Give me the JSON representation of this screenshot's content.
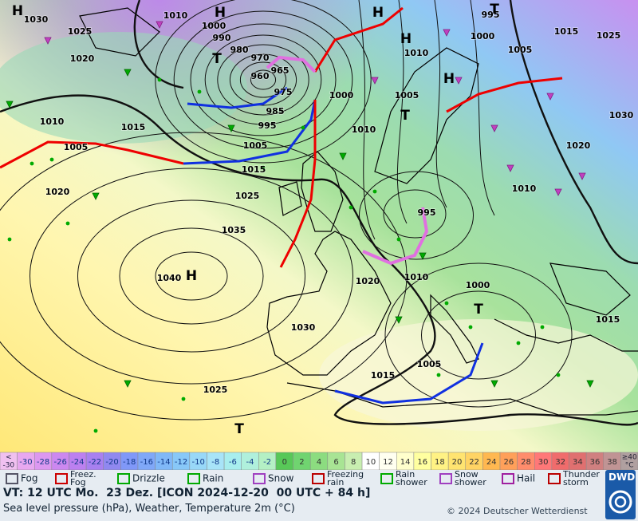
{
  "map": {
    "pressure_labels": [
      1030,
      1025,
      1020,
      1010,
      1000,
      990,
      980,
      970,
      960,
      965,
      975,
      985,
      995,
      1005,
      1015,
      1025,
      1035,
      1040,
      1015,
      1010,
      1005,
      1020,
      1000,
      1010,
      1005,
      1010,
      1000,
      995,
      1005,
      1015,
      1025,
      1030,
      1020,
      1010,
      995,
      1020,
      1010,
      1000,
      1030,
      1015,
      1005,
      1015,
      1025
    ],
    "centers": [
      "H",
      "H",
      "H",
      "H",
      "H",
      "T",
      "T",
      "H",
      "T",
      "T",
      "T"
    ],
    "temperature_scale": {
      "first_cell": [
        "<",
        "-30"
      ],
      "values": [
        -30,
        -28,
        -26,
        -24,
        -22,
        -20,
        -18,
        -16,
        -14,
        -12,
        -10,
        -8,
        -6,
        -4,
        -2,
        0,
        2,
        4,
        6,
        8,
        10,
        12,
        14,
        16,
        18,
        20,
        22,
        24,
        26,
        28,
        30,
        32,
        34,
        36,
        38
      ],
      "colors": [
        "#e8a8f0",
        "#dc98f0",
        "#cc88f0",
        "#bc80f0",
        "#a880f0",
        "#9088f0",
        "#8098f8",
        "#80a8f8",
        "#80b8f8",
        "#88c8f8",
        "#98d8f8",
        "#a8e4f8",
        "#a8eeee",
        "#b0f0dc",
        "#b4f0c4",
        "#58c858",
        "#70d470",
        "#8cdc80",
        "#a8e494",
        "#c8eeb0",
        "#ffffff",
        "#fffff0",
        "#ffffcc",
        "#ffffa0",
        "#fff284",
        "#ffe470",
        "#ffd464",
        "#ffb850",
        "#ffa05a",
        "#ff8c6c",
        "#ff7878",
        "#f06c6c",
        "#e07070",
        "#d08080",
        "#c09494"
      ],
      "last_cell": [
        "≥40",
        "°C"
      ]
    }
  },
  "legend": {
    "items": [
      [
        "Fog"
      ],
      [
        "Freez.",
        "Fog"
      ],
      [
        "Drizzle"
      ],
      [
        "Rain"
      ],
      [
        "Snow"
      ],
      [
        "Freezing",
        "rain"
      ],
      [
        "Rain",
        "shower"
      ],
      [
        "Snow",
        "shower"
      ],
      [
        "Hail"
      ],
      [
        "Thunder",
        "storm"
      ]
    ]
  },
  "footer": {
    "valid_time": "VT: 12 UTC Mo.  23 Dez. [ICON 2024-12-20  00 UTC + 84 h]",
    "description": "Sea level pressure (hPa), Weather, Temperature 2m (°C)",
    "copyright": "© 2024 Deutscher Wetterdienst",
    "logo": "DWD"
  }
}
